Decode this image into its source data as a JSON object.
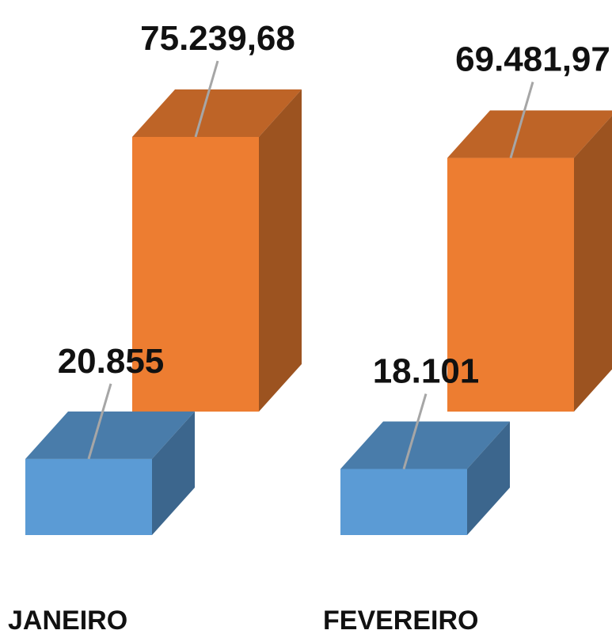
{
  "chart_data": {
    "type": "bar",
    "categories": [
      "JANEIRO",
      "FEVEREIRO"
    ],
    "series": [
      {
        "values": [
          20855,
          18101
        ],
        "labels": [
          "20.855",
          "18.101"
        ],
        "color": "#5b9bd5"
      },
      {
        "values": [
          75239.68,
          69481.97
        ],
        "labels": [
          "75.239,68",
          "69.481,97"
        ],
        "color": "#ed7d31"
      }
    ],
    "title": "",
    "xlabel": "",
    "ylabel": "",
    "grid": false,
    "legend": "none",
    "style": "3d-clustered-column"
  }
}
